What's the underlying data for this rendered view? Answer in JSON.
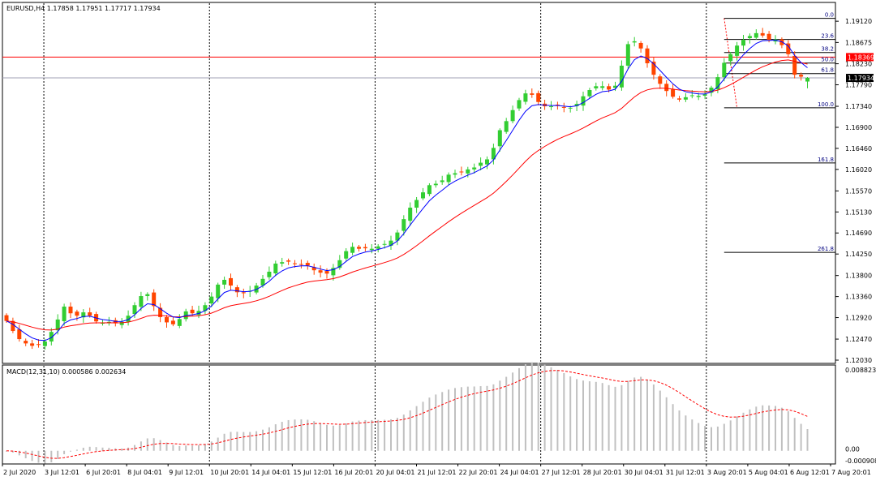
{
  "main_chart": {
    "title": "EURUSD,H4  1.17858 1.17951 1.17717 1.17934",
    "current_price_label": "1.17934",
    "marked_price_label": "1.18369"
  },
  "macd_panel": {
    "title": "MACD(12,31,10) 0.000586 0.002634",
    "ylabels": [
      "0.008823",
      "0.00",
      "-0.000908"
    ]
  },
  "colors": {
    "bull": "#32CD32",
    "bear": "#FF4500",
    "ma_fast": "#0000FF",
    "ma_slow": "#FF0000",
    "fib": "#000000",
    "fib_label": "#000080",
    "hline_red": "#FF0000",
    "hline_grey": "#A0A0B4",
    "marked_tag_bg": "#FF0000",
    "current_tag_bg": "#000000",
    "macd_hist": "#C0C0C0",
    "macd_signal": "#FF0000"
  },
  "chart_data": [
    {
      "type": "candlestick",
      "symbol": "EURUSD",
      "timeframe": "H4",
      "last_bar": {
        "open": 1.17858,
        "high": 1.17951,
        "low": 1.17717,
        "close": 1.17934
      },
      "ylim": [
        1.1203,
        1.1936
      ],
      "y_tick_labels": [
        "1.19120",
        "1.18675",
        "1.18230",
        "1.17790",
        "1.17340",
        "1.16900",
        "1.16460",
        "1.16020",
        "1.15570",
        "1.15130",
        "1.14690",
        "1.14250",
        "1.13800",
        "1.13360",
        "1.12920",
        "1.12470",
        "1.12030"
      ],
      "x_tick_labels": [
        "2 Jul 2020",
        "3 Jul 12:01",
        "6 Jul 20:01",
        "8 Jul 04:01",
        "9 Jul 12:01",
        "10 Jul 20:01",
        "14 Jul 04:01",
        "15 Jul 12:01",
        "16 Jul 20:01",
        "20 Jul 04:01",
        "21 Jul 12:01",
        "22 Jul 20:01",
        "24 Jul 04:01",
        "27 Jul 12:01",
        "28 Jul 20:01",
        "30 Jul 04:01",
        "31 Jul 12:01",
        "3 Aug 20:01",
        "5 Aug 04:01",
        "6 Aug 12:01",
        "7 Aug 20:01"
      ],
      "close": [
        1.1285,
        1.1264,
        1.1247,
        1.1238,
        1.1233,
        1.1236,
        1.1242,
        1.1262,
        1.1288,
        1.1315,
        1.1301,
        1.1296,
        1.1303,
        1.1296,
        1.1284,
        1.1281,
        1.1283,
        1.128,
        1.1283,
        1.1296,
        1.1318,
        1.1337,
        1.1341,
        1.1316,
        1.1293,
        1.1282,
        1.1278,
        1.1289,
        1.1305,
        1.1301,
        1.1306,
        1.1318,
        1.1336,
        1.1361,
        1.1371,
        1.1359,
        1.1345,
        1.1343,
        1.1348,
        1.1359,
        1.1373,
        1.1388,
        1.1405,
        1.1408,
        1.1409,
        1.1404,
        1.1403,
        1.1401,
        1.1391,
        1.1386,
        1.1384,
        1.1396,
        1.1412,
        1.1431,
        1.144,
        1.1436,
        1.1437,
        1.1436,
        1.1441,
        1.1446,
        1.1453,
        1.147,
        1.1498,
        1.1522,
        1.1538,
        1.1554,
        1.1569,
        1.1572,
        1.1579,
        1.1591,
        1.1594,
        1.1597,
        1.1602,
        1.1606,
        1.1616,
        1.1623,
        1.1647,
        1.1684,
        1.1703,
        1.1726,
        1.1747,
        1.1761,
        1.1758,
        1.1743,
        1.1734,
        1.1734,
        1.1736,
        1.1731,
        1.1731,
        1.1739,
        1.1755,
        1.1768,
        1.1776,
        1.1776,
        1.1769,
        1.1777,
        1.1819,
        1.1864,
        1.187,
        1.1855,
        1.1824,
        1.18,
        1.1781,
        1.1766,
        1.1754,
        1.1748,
        1.1753,
        1.1757,
        1.1756,
        1.1759,
        1.1773,
        1.1795,
        1.1825,
        1.1843,
        1.1861,
        1.1873,
        1.1881,
        1.1887,
        1.1882,
        1.1873,
        1.1874,
        1.1862,
        1.1843,
        1.18,
        1.1796,
        1.1793
      ],
      "overlays": [
        {
          "name": "MA fast",
          "color": "#0000FF"
        },
        {
          "name": "MA slow",
          "color": "#FF0000"
        }
      ],
      "horizontal_lines": [
        {
          "price": 1.18369,
          "color": "#FF0000"
        },
        {
          "price": 1.17934,
          "color": "#A0A0B4"
        }
      ],
      "fibonacci": {
        "high": 1.1918,
        "low": 1.1731,
        "levels": [
          {
            "label": "0.0",
            "ratio": 0
          },
          {
            "label": "23.6",
            "ratio": 0.236
          },
          {
            "label": "38.2",
            "ratio": 0.382
          },
          {
            "label": "50.0",
            "ratio": 0.5
          },
          {
            "label": "61.8",
            "ratio": 0.618
          },
          {
            "label": "100.0",
            "ratio": 1
          },
          {
            "label": "161.8",
            "ratio": 1.618
          },
          {
            "label": "261.8",
            "ratio": 2.618
          }
        ]
      }
    },
    {
      "type": "bar",
      "name": "MACD(12,31,10)",
      "ylim": [
        -0.000908,
        0.008823
      ],
      "y_tick_labels": [
        "0.008823",
        "0.00",
        "-0.000908"
      ],
      "histogram_label": "0.000586",
      "signal_label": "0.002634"
    }
  ]
}
